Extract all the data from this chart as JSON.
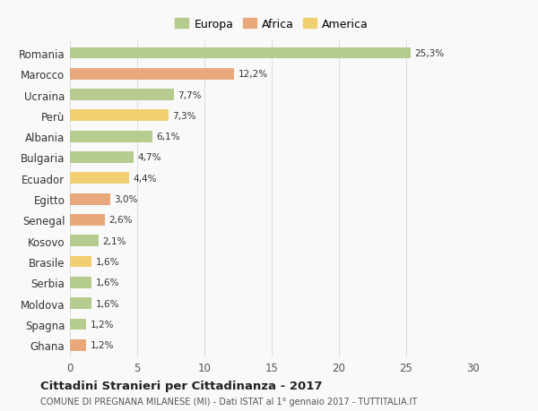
{
  "categories": [
    "Romania",
    "Marocco",
    "Ucraina",
    "Perù",
    "Albania",
    "Bulgaria",
    "Ecuador",
    "Egitto",
    "Senegal",
    "Kosovo",
    "Brasile",
    "Serbia",
    "Moldova",
    "Spagna",
    "Ghana"
  ],
  "values": [
    25.3,
    12.2,
    7.7,
    7.3,
    6.1,
    4.7,
    4.4,
    3.0,
    2.6,
    2.1,
    1.6,
    1.6,
    1.6,
    1.2,
    1.2
  ],
  "labels": [
    "25,3%",
    "12,2%",
    "7,7%",
    "7,3%",
    "6,1%",
    "4,7%",
    "4,4%",
    "3,0%",
    "2,6%",
    "2,1%",
    "1,6%",
    "1,6%",
    "1,6%",
    "1,2%",
    "1,2%"
  ],
  "continents": [
    "Europa",
    "Africa",
    "Europa",
    "America",
    "Europa",
    "Europa",
    "America",
    "Africa",
    "Africa",
    "Europa",
    "America",
    "Europa",
    "Europa",
    "Europa",
    "Africa"
  ],
  "colors": {
    "Europa": "#b5cc8e",
    "Africa": "#e8a87c",
    "America": "#f0d070"
  },
  "xlim": [
    0,
    30
  ],
  "xticks": [
    0,
    5,
    10,
    15,
    20,
    25,
    30
  ],
  "title": "Cittadini Stranieri per Cittadinanza - 2017",
  "subtitle": "COMUNE DI PREGNANA MILANESE (MI) - Dati ISTAT al 1° gennaio 2017 - TUTTITALIA.IT",
  "background_color": "#f9f9f9",
  "grid_color": "#dddddd",
  "bar_height": 0.55
}
